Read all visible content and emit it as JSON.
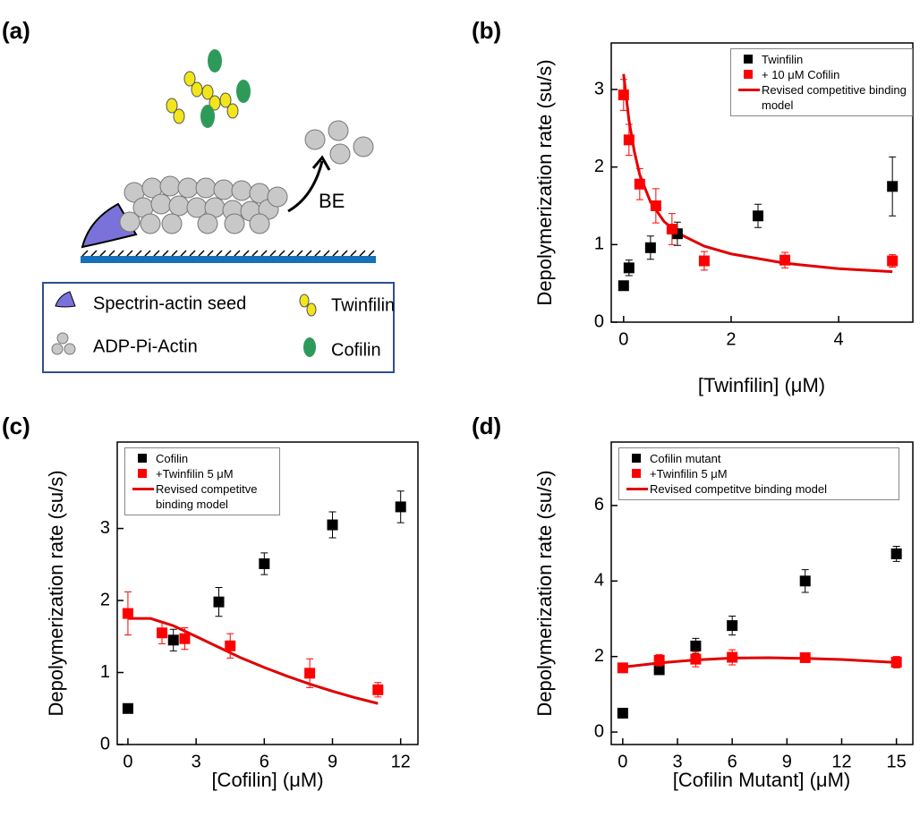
{
  "diagram": {
    "label": "(a)",
    "be": "BE",
    "legend": {
      "seed": "Spectrin-actin seed",
      "twinfilin": "Twinfilin",
      "actin": "ADP-Pi-Actin",
      "cofilin": "Cofilin"
    }
  },
  "chart_data": [
    {
      "label": "(b)",
      "type": "scatter",
      "xlabel": "[Twinfilin] (μM)",
      "ylabel": "Depolymerization rate (su/s)",
      "xlim": [
        -0.23,
        5.38
      ],
      "ylim": [
        0,
        3.6
      ],
      "xticks": [
        0,
        2,
        4
      ],
      "yticks": [
        0,
        1,
        2,
        3
      ],
      "legend": "upper right",
      "series": [
        {
          "name": "Twinfilin",
          "color": "#000000",
          "x": [
            0,
            0.1,
            0.5,
            1,
            2.5,
            5
          ],
          "values": [
            0.47,
            0.7,
            0.96,
            1.14,
            1.37,
            1.75
          ],
          "errors": [
            0.05,
            0.1,
            0.15,
            0.15,
            0.15,
            0.38
          ]
        },
        {
          "name": "+ 10 μM Cofilin",
          "color": "#ff0000",
          "x": [
            0,
            0.1,
            0.3,
            0.6,
            0.9,
            1.5,
            3,
            5
          ],
          "values": [
            2.93,
            2.35,
            1.78,
            1.5,
            1.2,
            0.79,
            0.8,
            0.79
          ],
          "errors": [
            0.2,
            0.2,
            0.2,
            0.22,
            0.2,
            0.12,
            0.1,
            0.08
          ]
        },
        {
          "name": "Revised competitive binding model",
          "color": "#e00000",
          "type": "line",
          "x": [
            0,
            0.1,
            0.2,
            0.3,
            0.5,
            0.75,
            1,
            1.5,
            2,
            3,
            4,
            5
          ],
          "values": [
            3.2,
            2.6,
            2.2,
            1.9,
            1.55,
            1.3,
            1.15,
            0.98,
            0.88,
            0.76,
            0.69,
            0.65
          ]
        }
      ]
    },
    {
      "label": "(c)",
      "type": "scatter",
      "xlabel": "[Cofilin] (μM)",
      "ylabel": "Depolymerization rate (su/s)",
      "xlim": [
        -0.47,
        12.76
      ],
      "ylim": [
        0,
        4.2
      ],
      "xticks": [
        0,
        3,
        6,
        9,
        12
      ],
      "yticks": [
        0,
        1,
        2,
        3
      ],
      "legend": "upper left",
      "series": [
        {
          "name": "Cofilin",
          "color": "#000000",
          "x": [
            0,
            2,
            4,
            6,
            9,
            12
          ],
          "values": [
            0.5,
            1.45,
            1.98,
            2.51,
            3.05,
            3.3
          ],
          "errors": [
            0.05,
            0.15,
            0.2,
            0.15,
            0.18,
            0.22
          ]
        },
        {
          "name": "+Twinfilin 5 μM",
          "color": "#ff0000",
          "x": [
            0,
            1.5,
            2.5,
            4.5,
            8,
            11
          ],
          "values": [
            1.82,
            1.55,
            1.47,
            1.37,
            0.99,
            0.76
          ],
          "errors": [
            0.3,
            0.15,
            0.15,
            0.17,
            0.2,
            0.1
          ]
        },
        {
          "name": "Revised competitve binding model",
          "color": "#e00000",
          "type": "line",
          "x": [
            0,
            1,
            2,
            3,
            4,
            5,
            6,
            7,
            8,
            9,
            10,
            11
          ],
          "values": [
            1.75,
            1.75,
            1.65,
            1.5,
            1.35,
            1.2,
            1.07,
            0.95,
            0.84,
            0.74,
            0.65,
            0.57
          ]
        }
      ]
    },
    {
      "label": "(d)",
      "type": "scatter",
      "xlabel": "[Cofilin Mutant] (μM)",
      "ylabel": "Depolymerization rate (su/s)",
      "xlim": [
        -0.63,
        15.9
      ],
      "ylim": [
        -0.33,
        7.68
      ],
      "xticks": [
        0,
        3,
        6,
        9,
        12,
        15
      ],
      "yticks": [
        0,
        2,
        4,
        6
      ],
      "legend": "upper left",
      "series": [
        {
          "name": "Cofilin mutant",
          "color": "#000000",
          "x": [
            0,
            2,
            4,
            6,
            10,
            15
          ],
          "values": [
            0.5,
            1.65,
            2.28,
            2.82,
            4.0,
            4.72
          ],
          "errors": [
            0.05,
            0.1,
            0.2,
            0.25,
            0.3,
            0.2
          ]
        },
        {
          "name": "+Twinfilin 5 μM",
          "color": "#ff0000",
          "x": [
            0,
            2,
            4,
            6,
            10,
            15
          ],
          "values": [
            1.7,
            1.9,
            1.93,
            1.98,
            1.97,
            1.85
          ],
          "errors": [
            0.1,
            0.15,
            0.2,
            0.2,
            0.1,
            0.15
          ]
        },
        {
          "name": "Revised competitve binding model",
          "color": "#e00000",
          "type": "line",
          "x": [
            0,
            2,
            4,
            6,
            8,
            10,
            12,
            15
          ],
          "values": [
            1.72,
            1.83,
            1.91,
            1.96,
            1.97,
            1.95,
            1.92,
            1.84
          ]
        }
      ]
    }
  ]
}
